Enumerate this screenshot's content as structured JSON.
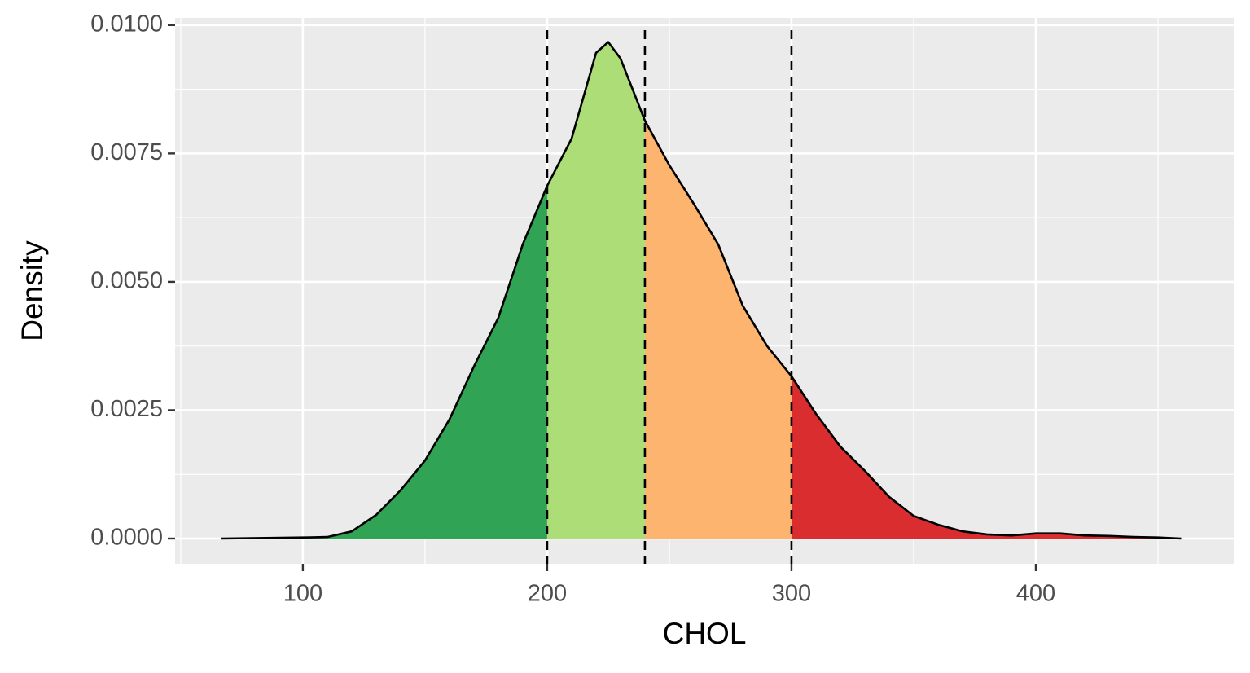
{
  "chart_data": {
    "type": "density",
    "x_label": "CHOL",
    "y_label": "Density",
    "x": [
      66.7,
      100,
      110,
      120,
      130,
      140,
      150,
      160,
      170,
      180,
      190,
      200,
      210,
      220,
      225,
      230,
      240,
      250,
      260,
      270,
      280,
      290,
      300,
      310,
      320,
      330,
      340,
      350,
      360,
      370,
      380,
      390,
      400,
      410,
      420,
      430,
      440,
      450,
      459.5
    ],
    "values": [
      0,
      2e-05,
      3e-05,
      0.00014,
      0.00046,
      0.00094,
      0.00152,
      0.00232,
      0.00335,
      0.0043,
      0.00573,
      0.00687,
      0.00779,
      0.00946,
      0.00967,
      0.00935,
      0.00814,
      0.00727,
      0.00652,
      0.00573,
      0.00454,
      0.00375,
      0.00316,
      0.00243,
      0.00179,
      0.00132,
      0.00081,
      0.00044,
      0.00027,
      0.00014,
      8e-05,
      6e-05,
      0.0001,
      0.0001,
      6e-05,
      5e-05,
      3e-05,
      2e-05,
      0
    ],
    "line_color": "#000000",
    "vlines": [
      200,
      240,
      300
    ],
    "fill_colors": [
      "#31a354",
      "#addd76",
      "#fcb46e",
      "#d92d2f"
    ],
    "xlim": [
      47.7,
      481
    ],
    "ylim": [
      -0.000492,
      0.01014
    ],
    "xticks": [
      100,
      200,
      300,
      400
    ],
    "yticks": [
      {
        "value": 0,
        "label": "0.0000"
      },
      {
        "value": 0.0025,
        "label": "0.0025"
      },
      {
        "value": 0.005,
        "label": "0.0050"
      },
      {
        "value": 0.0075,
        "label": "0.0075"
      },
      {
        "value": 0.01,
        "label": "0.0100"
      }
    ],
    "x_minor_grid": [
      50,
      150,
      250,
      350,
      450
    ],
    "y_minor_grid": [
      0.00125,
      0.00375,
      0.00625,
      0.00875
    ],
    "grid": true
  }
}
